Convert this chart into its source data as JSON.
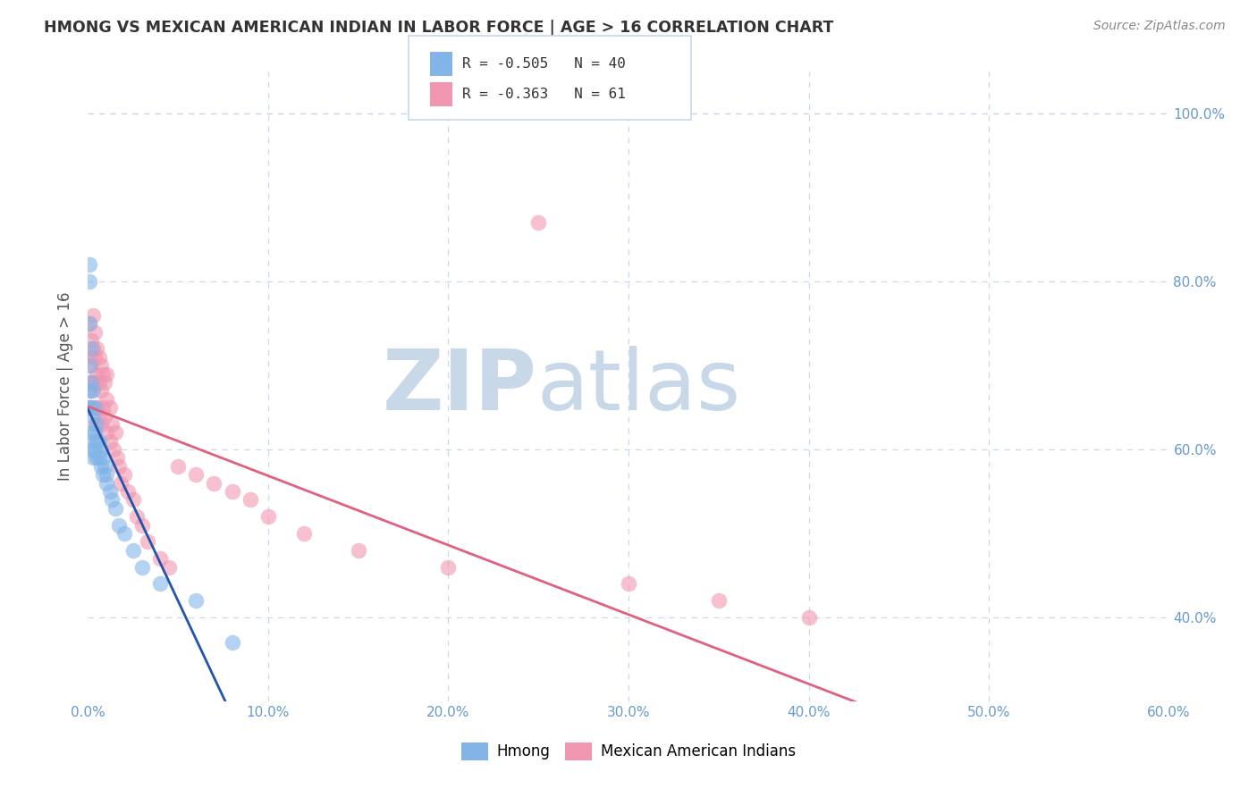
{
  "title": "HMONG VS MEXICAN AMERICAN INDIAN IN LABOR FORCE | AGE > 16 CORRELATION CHART",
  "source": "Source: ZipAtlas.com",
  "ylabel": "In Labor Force | Age > 16",
  "background_color": "#ffffff",
  "watermark_zip": "ZIP",
  "watermark_atlas": "atlas",
  "legend_hmong": {
    "R": -0.505,
    "N": 40
  },
  "legend_mexican": {
    "R": -0.363,
    "N": 61
  },
  "hmong_color": "#82b4e8",
  "mexican_color": "#f096b0",
  "hmong_line_color": "#2255aa",
  "mexican_line_color": "#e06080",
  "xmin": 0.0,
  "xmax": 0.6,
  "ymin": 0.3,
  "ymax": 1.05,
  "grid_color": "#c8d8ec",
  "tick_color": "#6699cc",
  "title_color": "#333333",
  "watermark_color": "#c8d8e8",
  "xtick_vals": [
    0.0,
    0.1,
    0.2,
    0.3,
    0.4,
    0.5,
    0.6
  ],
  "ytick_right_vals": [
    0.4,
    0.6,
    0.8,
    1.0
  ],
  "ytick_right_labels": [
    "40.0%",
    "60.0%",
    "80.0%",
    "100.0%"
  ]
}
